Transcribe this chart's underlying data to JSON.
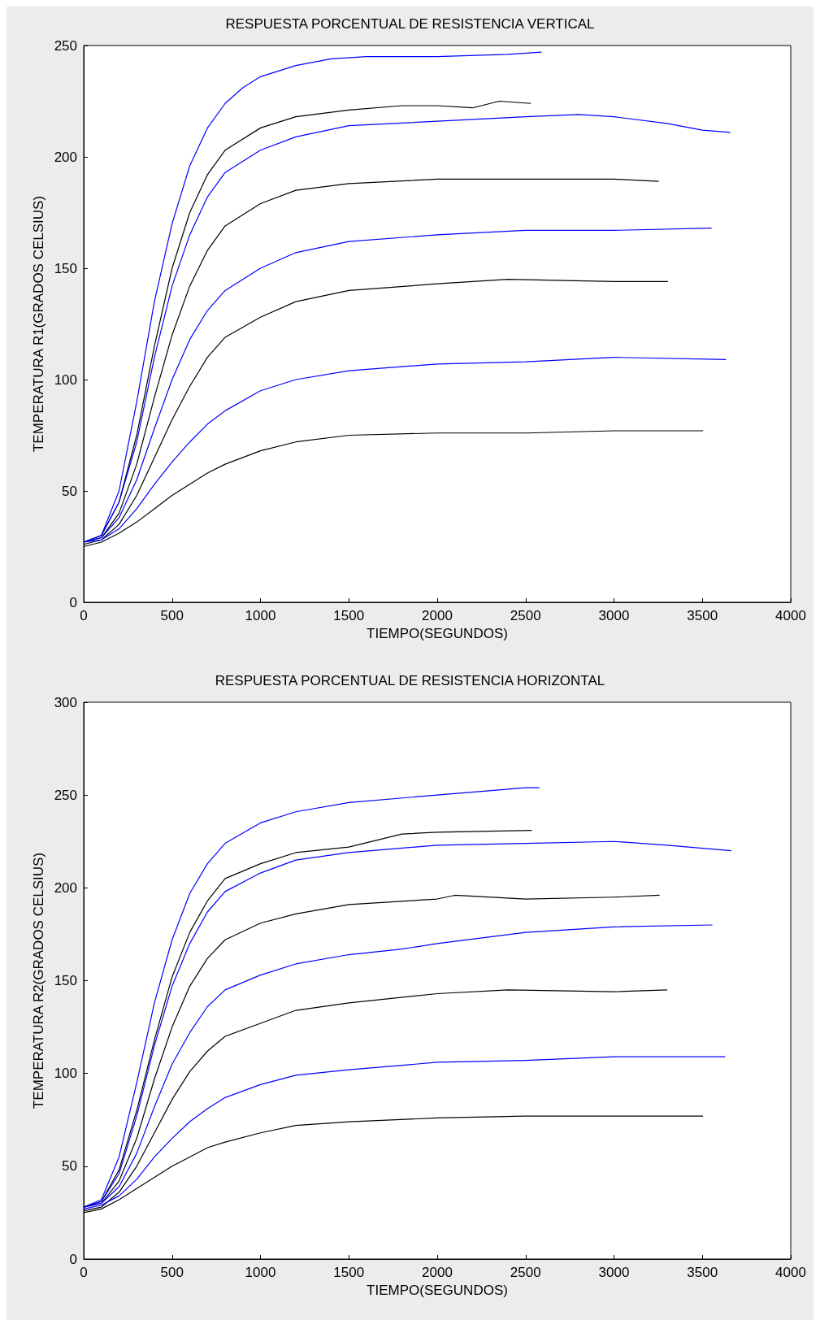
{
  "chart_data": [
    {
      "type": "line",
      "title": "RESPUESTA PORCENTUAL DE RESISTENCIA VERTICAL",
      "xlabel": "TIEMPO(SEGUNDOS)",
      "ylabel": "TEMPERATURA R1(GRADOS CELSIUS)",
      "xlim": [
        0,
        4000
      ],
      "xticks": [
        0,
        500,
        1000,
        1500,
        2000,
        2500,
        3000,
        3500,
        4000
      ],
      "ylim": [
        0,
        250
      ],
      "yticks": [
        0,
        50,
        100,
        150,
        200,
        250
      ],
      "marker": "none",
      "series": [
        {
          "color": "#0000ff",
          "x": [
            0,
            100,
            200,
            300,
            400,
            500,
            600,
            700,
            800,
            900,
            1000,
            1200,
            1400,
            1600,
            2000,
            2400,
            2590
          ],
          "values": [
            27,
            30,
            50,
            90,
            135,
            170,
            196,
            213,
            224,
            231,
            236,
            241,
            244,
            245,
            245,
            246,
            247
          ]
        },
        {
          "color": "#000000",
          "x": [
            0,
            100,
            200,
            300,
            400,
            500,
            600,
            700,
            800,
            1000,
            1200,
            1500,
            1800,
            2000,
            2200,
            2350,
            2530
          ],
          "values": [
            27,
            30,
            45,
            75,
            115,
            150,
            175,
            192,
            203,
            213,
            218,
            221,
            223,
            223,
            222,
            225,
            224
          ]
        },
        {
          "color": "#0000ff",
          "x": [
            0,
            100,
            200,
            300,
            400,
            500,
            600,
            700,
            800,
            1000,
            1200,
            1500,
            2000,
            2500,
            2800,
            3000,
            3300,
            3500,
            3658
          ],
          "values": [
            27,
            30,
            45,
            72,
            110,
            142,
            165,
            182,
            193,
            203,
            209,
            214,
            216,
            218,
            219,
            218,
            215,
            212,
            211
          ]
        },
        {
          "color": "#000000",
          "x": [
            0,
            100,
            200,
            300,
            400,
            500,
            600,
            700,
            800,
            1000,
            1200,
            1500,
            2000,
            2500,
            3000,
            3253
          ],
          "values": [
            27,
            29,
            40,
            62,
            92,
            120,
            142,
            158,
            169,
            179,
            185,
            188,
            190,
            190,
            190,
            189
          ]
        },
        {
          "color": "#0000ff",
          "x": [
            0,
            100,
            200,
            300,
            400,
            500,
            600,
            700,
            800,
            1000,
            1200,
            1500,
            2000,
            2500,
            3000,
            3552
          ],
          "values": [
            27,
            29,
            38,
            55,
            78,
            100,
            118,
            131,
            140,
            150,
            157,
            162,
            165,
            167,
            167,
            168
          ]
        },
        {
          "color": "#000000",
          "x": [
            0,
            100,
            200,
            300,
            400,
            500,
            600,
            700,
            800,
            1000,
            1200,
            1500,
            2000,
            2400,
            3000,
            3306
          ],
          "values": [
            26,
            28,
            35,
            48,
            65,
            82,
            97,
            110,
            119,
            128,
            135,
            140,
            143,
            145,
            144,
            144
          ]
        },
        {
          "color": "#0000ff",
          "x": [
            0,
            100,
            200,
            300,
            400,
            500,
            600,
            700,
            800,
            1000,
            1200,
            1500,
            2000,
            2500,
            3000,
            3634
          ],
          "values": [
            27,
            28,
            33,
            42,
            53,
            63,
            72,
            80,
            86,
            95,
            100,
            104,
            107,
            108,
            110,
            109
          ]
        },
        {
          "color": "#000000",
          "x": [
            0,
            100,
            200,
            300,
            400,
            500,
            600,
            700,
            800,
            1000,
            1200,
            1500,
            2000,
            2500,
            3000,
            3504
          ],
          "values": [
            25,
            27,
            31,
            36,
            42,
            48,
            53,
            58,
            62,
            68,
            72,
            75,
            76,
            76,
            77,
            77
          ]
        }
      ]
    },
    {
      "type": "line",
      "title": "RESPUESTA PORCENTUAL DE RESISTENCIA HORIZONTAL",
      "xlabel": "TIEMPO(SEGUNDOS)",
      "ylabel": "TEMPERATURA R2(GRADOS CELSIUS)",
      "xlim": [
        0,
        4000
      ],
      "xticks": [
        0,
        500,
        1000,
        1500,
        2000,
        2500,
        3000,
        3500,
        4000
      ],
      "ylim": [
        0,
        300
      ],
      "yticks": [
        0,
        50,
        100,
        150,
        200,
        250,
        300
      ],
      "marker": "none",
      "series": [
        {
          "color": "#0000ff",
          "x": [
            0,
            100,
            200,
            300,
            400,
            500,
            600,
            700,
            800,
            1000,
            1200,
            1500,
            2000,
            2500,
            2578
          ],
          "values": [
            28,
            32,
            55,
            95,
            138,
            172,
            197,
            213,
            224,
            235,
            241,
            246,
            250,
            254,
            254
          ]
        },
        {
          "color": "#000000",
          "x": [
            0,
            100,
            200,
            300,
            400,
            500,
            600,
            700,
            800,
            1000,
            1200,
            1500,
            1800,
            2000,
            2535
          ],
          "values": [
            28,
            31,
            48,
            80,
            118,
            152,
            176,
            193,
            205,
            213,
            219,
            222,
            229,
            230,
            231
          ]
        },
        {
          "color": "#0000ff",
          "x": [
            0,
            100,
            200,
            300,
            400,
            500,
            600,
            700,
            800,
            1000,
            1200,
            1500,
            2000,
            2500,
            3000,
            3300,
            3663
          ],
          "values": [
            28,
            31,
            46,
            77,
            115,
            147,
            170,
            187,
            198,
            208,
            215,
            219,
            223,
            224,
            225,
            223,
            220
          ]
        },
        {
          "color": "#000000",
          "x": [
            0,
            100,
            200,
            300,
            400,
            500,
            600,
            700,
            800,
            1000,
            1200,
            1500,
            2000,
            2100,
            2500,
            3000,
            3258
          ],
          "values": [
            28,
            30,
            42,
            65,
            97,
            125,
            147,
            162,
            172,
            181,
            186,
            191,
            194,
            196,
            194,
            195,
            196
          ]
        },
        {
          "color": "#0000ff",
          "x": [
            0,
            100,
            200,
            300,
            400,
            500,
            600,
            700,
            800,
            1000,
            1200,
            1500,
            1800,
            2000,
            2500,
            3000,
            3557
          ],
          "values": [
            28,
            30,
            39,
            57,
            82,
            105,
            122,
            136,
            145,
            153,
            159,
            164,
            167,
            170,
            176,
            179,
            180
          ]
        },
        {
          "color": "#000000",
          "x": [
            0,
            100,
            200,
            300,
            400,
            500,
            600,
            700,
            800,
            1000,
            1200,
            1500,
            2000,
            2400,
            3000,
            3301
          ],
          "values": [
            26,
            28,
            36,
            50,
            68,
            86,
            101,
            112,
            120,
            127,
            134,
            138,
            143,
            145,
            144,
            145
          ]
        },
        {
          "color": "#0000ff",
          "x": [
            0,
            100,
            200,
            300,
            400,
            500,
            600,
            700,
            800,
            1000,
            1200,
            1500,
            2000,
            2500,
            3000,
            3629
          ],
          "values": [
            27,
            29,
            34,
            43,
            55,
            65,
            74,
            81,
            87,
            94,
            99,
            102,
            106,
            107,
            109,
            109
          ]
        },
        {
          "color": "#000000",
          "x": [
            0,
            100,
            200,
            300,
            400,
            500,
            600,
            700,
            800,
            1000,
            1200,
            1500,
            2000,
            2500,
            3504
          ],
          "values": [
            25,
            27,
            32,
            38,
            44,
            50,
            55,
            60,
            63,
            68,
            72,
            74,
            76,
            77,
            77
          ]
        }
      ]
    }
  ]
}
